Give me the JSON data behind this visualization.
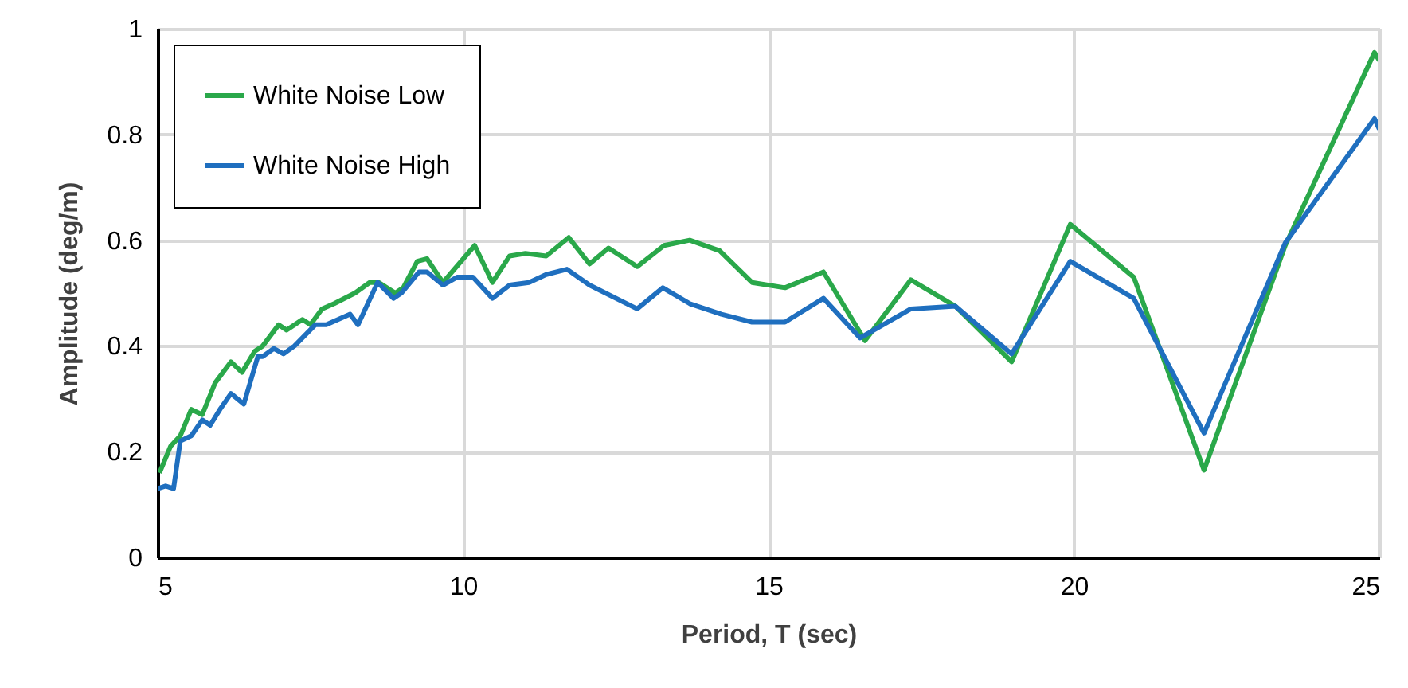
{
  "chart_data": {
    "type": "line",
    "xlabel": "Period, T (sec)",
    "ylabel": "Amplitude (deg/m)",
    "xlim": [
      5,
      25
    ],
    "xticks": [
      5,
      10,
      15,
      20,
      25
    ],
    "ylim": [
      0,
      1
    ],
    "yticks": [
      0,
      0.2,
      0.4,
      0.6,
      0.8,
      1
    ],
    "grid": true,
    "legend": "top left",
    "line_style": "solid",
    "series": [
      {
        "name": "White Noise Low",
        "color": "#2aa84a",
        "x": [
          5.03,
          5.21,
          5.37,
          5.55,
          5.73,
          5.94,
          6.2,
          6.38,
          6.59,
          6.72,
          6.98,
          7.11,
          7.37,
          7.5,
          7.69,
          7.89,
          8.23,
          8.47,
          8.62,
          8.89,
          9.02,
          9.25,
          9.41,
          9.67,
          10.19,
          10.48,
          10.76,
          11.02,
          11.36,
          11.73,
          12.07,
          12.38,
          12.85,
          13.29,
          13.71,
          14.2,
          14.73,
          15.27,
          15.9,
          16.58,
          17.33,
          18.06,
          18.98,
          19.94,
          20.98,
          22.13,
          23.46,
          24.92,
          25
        ],
        "values": [
          0.16,
          0.21,
          0.23,
          0.28,
          0.27,
          0.33,
          0.37,
          0.35,
          0.39,
          0.4,
          0.44,
          0.43,
          0.45,
          0.44,
          0.47,
          0.48,
          0.5,
          0.52,
          0.52,
          0.5,
          0.51,
          0.56,
          0.565,
          0.52,
          0.59,
          0.52,
          0.57,
          0.575,
          0.57,
          0.605,
          0.555,
          0.585,
          0.55,
          0.59,
          0.6,
          0.58,
          0.52,
          0.51,
          0.54,
          0.41,
          0.525,
          0.475,
          0.37,
          0.63,
          0.53,
          0.165,
          0.59,
          0.955,
          0.94
        ]
      },
      {
        "name": "White Noise High",
        "color": "#1f6fbf",
        "x": [
          5,
          5.13,
          5.26,
          5.37,
          5.55,
          5.73,
          5.86,
          6.02,
          6.2,
          6.41,
          6.64,
          6.72,
          6.9,
          7.06,
          7.24,
          7.58,
          7.76,
          8.15,
          8.28,
          8.6,
          8.86,
          8.99,
          9.28,
          9.41,
          9.67,
          9.9,
          10.16,
          10.48,
          10.76,
          11.08,
          11.36,
          11.7,
          12.07,
          12.85,
          13.27,
          13.71,
          14.23,
          14.73,
          15.27,
          15.9,
          16.5,
          17.33,
          18.06,
          18.98,
          19.94,
          20.98,
          22.13,
          23.46,
          24.92,
          25
        ],
        "values": [
          0.13,
          0.135,
          0.13,
          0.22,
          0.23,
          0.26,
          0.25,
          0.28,
          0.31,
          0.29,
          0.38,
          0.38,
          0.395,
          0.385,
          0.4,
          0.44,
          0.44,
          0.46,
          0.44,
          0.52,
          0.49,
          0.5,
          0.54,
          0.54,
          0.515,
          0.53,
          0.53,
          0.49,
          0.515,
          0.52,
          0.535,
          0.545,
          0.515,
          0.47,
          0.51,
          0.48,
          0.46,
          0.445,
          0.445,
          0.49,
          0.415,
          0.47,
          0.475,
          0.385,
          0.56,
          0.49,
          0.235,
          0.595,
          0.83,
          0.81
        ]
      }
    ]
  }
}
